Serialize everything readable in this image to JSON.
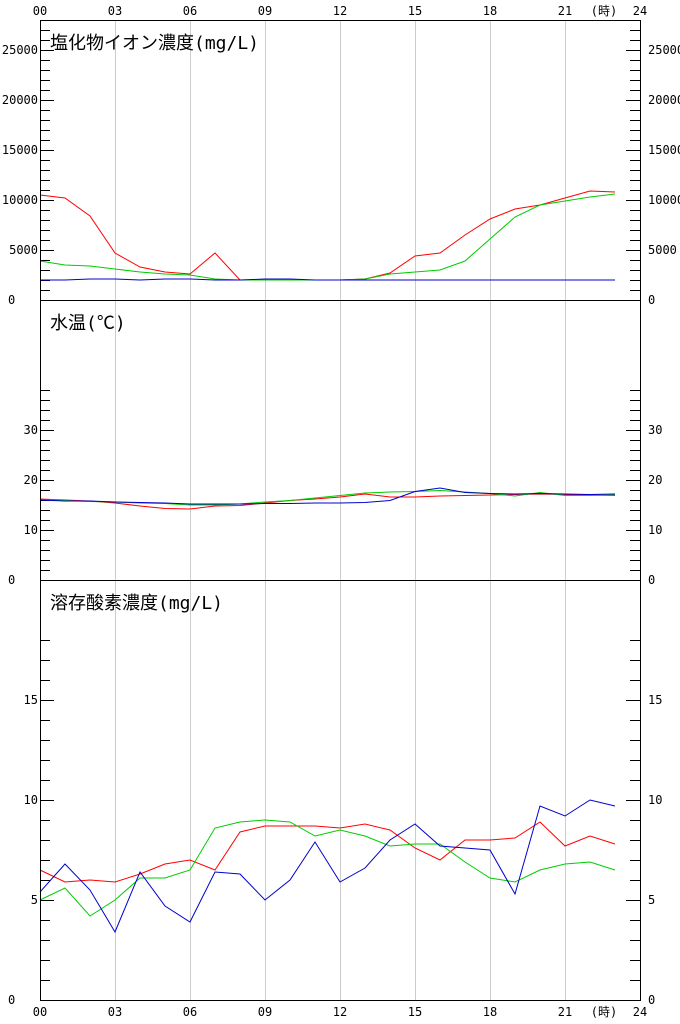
{
  "x_axis": {
    "tick_labels": [
      "00",
      "03",
      "06",
      "09",
      "12",
      "15",
      "18",
      "21",
      "24"
    ],
    "unit_label": "(時)",
    "range": [
      0,
      24
    ]
  },
  "colors": {
    "red": "#ff0000",
    "green": "#00cc00",
    "blue": "#0000cc",
    "grid": "#cccccc",
    "frame": "#000000"
  },
  "chart_data": [
    {
      "type": "line",
      "title": "塩化物イオン濃度(mg/L)",
      "ylim": [
        0,
        28000
      ],
      "y_tick_labels": [
        {
          "value": 5000,
          "label": "5000"
        },
        {
          "value": 10000,
          "label": "10000"
        },
        {
          "value": 15000,
          "label": "15000"
        },
        {
          "value": 20000,
          "label": "20000"
        },
        {
          "value": 25000,
          "label": "25000"
        }
      ],
      "minor_tick_step": 1000,
      "zero_label": "0",
      "grid": true,
      "x": [
        0,
        1,
        2,
        3,
        4,
        5,
        6,
        7,
        8,
        9,
        10,
        11,
        12,
        13,
        14,
        15,
        16,
        17,
        18,
        19,
        20,
        21,
        22,
        23
      ],
      "series": [
        {
          "color": "red",
          "values": [
            10500,
            10200,
            8400,
            4700,
            3300,
            2800,
            2600,
            4700,
            2000,
            2000,
            2000,
            2000,
            2000,
            2100,
            2700,
            4400,
            4700,
            6500,
            8100,
            9100,
            9500,
            10200,
            10900,
            10800
          ]
        },
        {
          "color": "green",
          "values": [
            3900,
            3500,
            3400,
            3100,
            2800,
            2600,
            2500,
            2100,
            2000,
            2000,
            2000,
            2000,
            2000,
            2100,
            2600,
            2800,
            3000,
            3900,
            6100,
            8300,
            9500,
            9900,
            10300,
            10600
          ]
        },
        {
          "color": "blue",
          "values": [
            2000,
            2000,
            2100,
            2100,
            2000,
            2100,
            2100,
            2000,
            2000,
            2100,
            2100,
            2000,
            2000,
            2000,
            2000,
            2000,
            2000,
            2000,
            2000,
            2000,
            2000,
            2000,
            2000,
            2000
          ]
        }
      ]
    },
    {
      "type": "line",
      "title": "水温(℃)",
      "ylim": [
        0,
        56
      ],
      "y_tick_labels": [
        {
          "value": 10,
          "label": "10"
        },
        {
          "value": 20,
          "label": "20"
        },
        {
          "value": 30,
          "label": "30"
        }
      ],
      "minor_tick_step": 2,
      "minor_tick_max": 38,
      "zero_label": "0",
      "grid": true,
      "x": [
        0,
        1,
        2,
        3,
        4,
        5,
        6,
        7,
        8,
        9,
        10,
        11,
        12,
        13,
        14,
        15,
        16,
        17,
        18,
        19,
        20,
        21,
        22,
        23
      ],
      "series": [
        {
          "color": "red",
          "values": [
            16.2,
            16.0,
            15.8,
            15.4,
            14.8,
            14.3,
            14.2,
            14.8,
            14.9,
            15.4,
            15.9,
            16.2,
            16.6,
            17.2,
            16.6,
            16.6,
            16.8,
            16.9,
            17.0,
            17.1,
            17.2,
            17.1,
            17.0,
            16.9
          ]
        },
        {
          "color": "green",
          "values": [
            16.1,
            15.9,
            15.7,
            15.6,
            15.4,
            15.3,
            15.0,
            15.0,
            15.2,
            15.6,
            15.9,
            16.4,
            16.9,
            17.4,
            17.6,
            17.7,
            17.9,
            17.6,
            17.3,
            16.8,
            17.5,
            16.9,
            16.9,
            17.0
          ]
        },
        {
          "color": "blue",
          "values": [
            16.0,
            15.8,
            15.8,
            15.6,
            15.5,
            15.4,
            15.2,
            15.2,
            15.2,
            15.3,
            15.3,
            15.4,
            15.4,
            15.5,
            15.9,
            17.7,
            18.4,
            17.5,
            17.3,
            17.2,
            17.3,
            17.2,
            17.1,
            17.2
          ]
        }
      ]
    },
    {
      "type": "line",
      "title": "溶存酸素濃度(mg/L)",
      "ylim": [
        0,
        21
      ],
      "y_tick_labels": [
        {
          "value": 5,
          "label": "5"
        },
        {
          "value": 10,
          "label": "10"
        },
        {
          "value": 15,
          "label": "15"
        }
      ],
      "minor_tick_step": 1,
      "minor_tick_max": 18,
      "zero_label": "0",
      "grid": true,
      "x": [
        0,
        1,
        2,
        3,
        4,
        5,
        6,
        7,
        8,
        9,
        10,
        11,
        12,
        13,
        14,
        15,
        16,
        17,
        18,
        19,
        20,
        21,
        22,
        23
      ],
      "series": [
        {
          "color": "red",
          "values": [
            6.5,
            5.9,
            6.0,
            5.9,
            6.3,
            6.8,
            7.0,
            6.5,
            8.4,
            8.7,
            8.7,
            8.7,
            8.6,
            8.8,
            8.5,
            7.6,
            7.0,
            8.0,
            8.0,
            8.1,
            8.9,
            7.7,
            8.2,
            7.8
          ]
        },
        {
          "color": "green",
          "values": [
            5.0,
            5.6,
            4.2,
            5.0,
            6.1,
            6.1,
            6.5,
            8.6,
            8.9,
            9.0,
            8.9,
            8.2,
            8.5,
            8.2,
            7.7,
            7.8,
            7.8,
            6.9,
            6.1,
            5.9,
            6.5,
            6.8,
            6.9,
            6.5
          ]
        },
        {
          "color": "blue",
          "values": [
            5.4,
            6.8,
            5.5,
            3.4,
            6.4,
            4.7,
            3.9,
            6.4,
            6.3,
            5.0,
            6.0,
            7.9,
            5.9,
            6.6,
            8.0,
            8.8,
            7.7,
            7.6,
            7.5,
            5.3,
            9.7,
            9.2,
            10.0,
            9.7
          ]
        }
      ]
    }
  ]
}
